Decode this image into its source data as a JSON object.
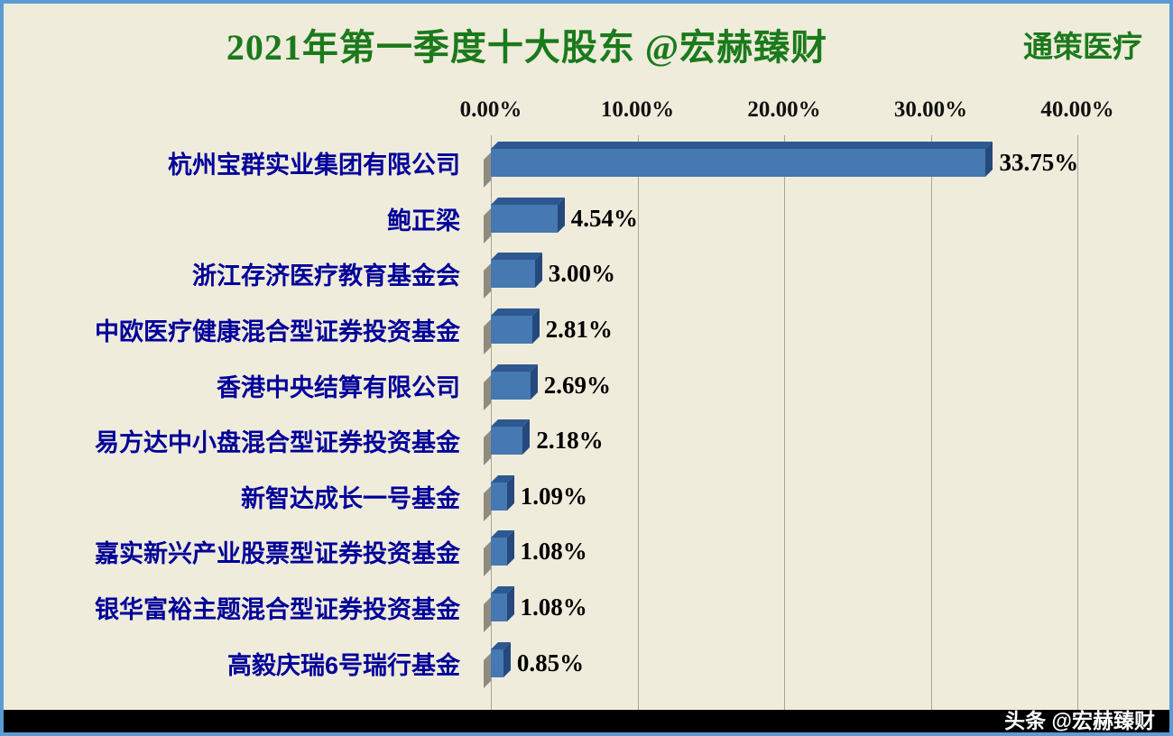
{
  "header": {
    "title": "2021年第一季度十大股东 @宏赫臻财",
    "stock_label": "通策医疗"
  },
  "footer": {
    "watermark": "头条 @宏赫臻财"
  },
  "chart_data": {
    "type": "bar",
    "orientation": "horizontal",
    "title": "2021年第一季度十大股东 @宏赫臻财",
    "categories": [
      "杭州宝群实业集团有限公司",
      "鲍正梁",
      "浙江存济医疗教育基金会",
      "中欧医疗健康混合型证券投资基金",
      "香港中央结算有限公司",
      "易方达中小盘混合型证券投资基金",
      "新智达成长一号基金",
      "嘉实新兴产业股票型证券投资基金",
      "银华富裕主题混合型证券投资基金",
      "高毅庆瑞6号瑞行基金"
    ],
    "values": [
      33.75,
      4.54,
      3.0,
      2.81,
      2.69,
      2.18,
      1.09,
      1.08,
      1.08,
      0.85
    ],
    "value_labels": [
      "33.75%",
      "4.54%",
      "3.00%",
      "2.81%",
      "2.69%",
      "2.18%",
      "1.09%",
      "1.08%",
      "1.08%",
      "0.85%"
    ],
    "x_ticks": [
      "0.00%",
      "10.00%",
      "20.00%",
      "30.00%",
      "40.00%"
    ],
    "xlim": [
      0,
      40
    ],
    "grid": true,
    "legend": "none",
    "bar_style": "3d"
  },
  "colors": {
    "background": "#f0ecdc",
    "border": "#5b9bd5",
    "title_green": "#1b7a1b",
    "category_navy": "#00009a",
    "bar_front": "#4678b2",
    "bar_top": "#2d5890",
    "bar_end": "#24497c",
    "gridline": "#a9a597",
    "footer_bg": "#000000",
    "footer_text": "#ffffff"
  }
}
